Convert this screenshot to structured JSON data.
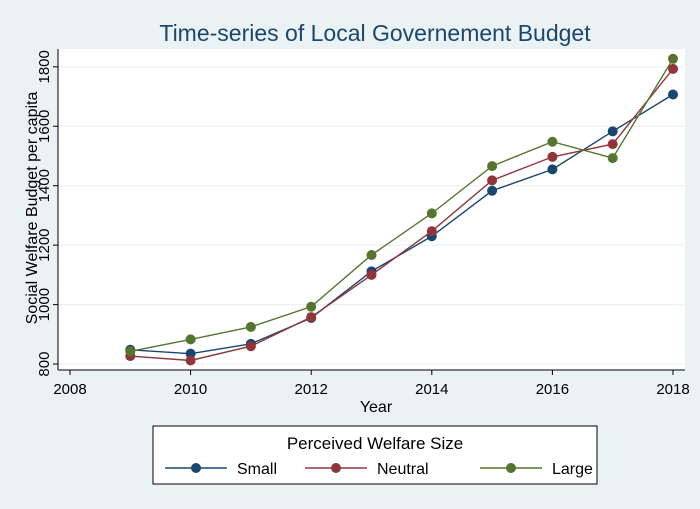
{
  "chart_data": {
    "type": "line",
    "title": "Time-series of Local Governement Budget",
    "xlabel": "Year",
    "ylabel": "Social Welfare Budget per capita",
    "xlim": [
      2008,
      2018
    ],
    "ylim": [
      780,
      1860
    ],
    "x_ticks": [
      2008,
      2010,
      2012,
      2014,
      2016,
      2018
    ],
    "y_ticks": [
      800,
      1000,
      1200,
      1400,
      1600,
      1800
    ],
    "grid": "horizontal",
    "legend": {
      "title": "Perceived Welfare Size",
      "position": "bottom"
    },
    "x": [
      2009,
      2010,
      2011,
      2012,
      2013,
      2014,
      2015,
      2016,
      2017,
      2018
    ],
    "series": [
      {
        "name": "Small",
        "color": "#1a476f",
        "values": [
          848,
          835,
          868,
          955,
          1112,
          1230,
          1383,
          1455,
          1583,
          1707
        ]
      },
      {
        "name": "Neutral",
        "color": "#90353b",
        "values": [
          827,
          812,
          860,
          958,
          1100,
          1247,
          1418,
          1497,
          1540,
          1793
        ]
      },
      {
        "name": "Large",
        "color": "#55752f",
        "values": [
          843,
          883,
          925,
          993,
          1167,
          1307,
          1466,
          1548,
          1493,
          1827
        ]
      }
    ]
  }
}
